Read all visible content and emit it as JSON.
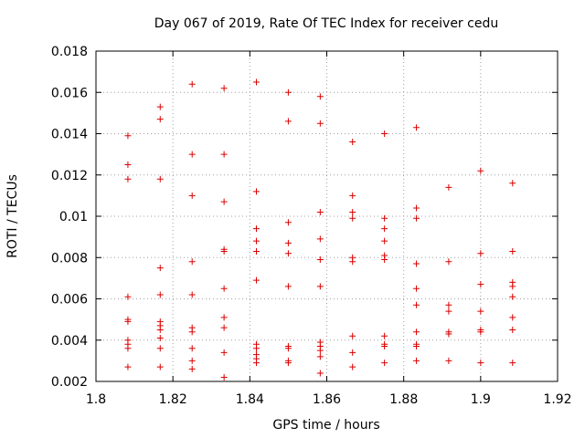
{
  "chart_data": {
    "type": "scatter",
    "title": "Day 067 of 2019, Rate Of TEC Index for receiver cedu",
    "xlabel": "GPS time / hours",
    "ylabel": "ROTI / TECUs",
    "xlim": [
      1.8,
      1.92
    ],
    "ylim": [
      0.002,
      0.018
    ],
    "xticks": [
      1.8,
      1.82,
      1.84,
      1.86,
      1.88,
      1.9,
      1.92
    ],
    "xtick_labels": [
      "1.8",
      "1.82",
      "1.84",
      "1.86",
      "1.88",
      "1.9",
      "1.92"
    ],
    "yticks": [
      0.002,
      0.004,
      0.006,
      0.008,
      0.01,
      0.012,
      0.014,
      0.016,
      0.018
    ],
    "ytick_labels": [
      "0.002",
      "0.004",
      "0.006",
      "0.008",
      "0.01",
      "0.012",
      "0.014",
      "0.016",
      "0.018"
    ],
    "grid": true,
    "marker": "+",
    "marker_color": "#dd0000",
    "series": [
      {
        "name": "ROTI",
        "points": [
          [
            1.8083,
            0.0139
          ],
          [
            1.8083,
            0.0125
          ],
          [
            1.8083,
            0.0118
          ],
          [
            1.8083,
            0.0061
          ],
          [
            1.8083,
            0.005
          ],
          [
            1.8083,
            0.0049
          ],
          [
            1.8083,
            0.004
          ],
          [
            1.8083,
            0.0038
          ],
          [
            1.8083,
            0.0036
          ],
          [
            1.8083,
            0.0027
          ],
          [
            1.8167,
            0.0153
          ],
          [
            1.8167,
            0.0147
          ],
          [
            1.8167,
            0.0118
          ],
          [
            1.8167,
            0.0075
          ],
          [
            1.8167,
            0.0062
          ],
          [
            1.8167,
            0.0049
          ],
          [
            1.8167,
            0.0047
          ],
          [
            1.8167,
            0.0045
          ],
          [
            1.8167,
            0.0041
          ],
          [
            1.8167,
            0.0036
          ],
          [
            1.8167,
            0.0027
          ],
          [
            1.825,
            0.0164
          ],
          [
            1.825,
            0.013
          ],
          [
            1.825,
            0.011
          ],
          [
            1.825,
            0.0078
          ],
          [
            1.825,
            0.0062
          ],
          [
            1.825,
            0.0046
          ],
          [
            1.825,
            0.0044
          ],
          [
            1.825,
            0.0036
          ],
          [
            1.825,
            0.003
          ],
          [
            1.825,
            0.0026
          ],
          [
            1.8333,
            0.0162
          ],
          [
            1.8333,
            0.013
          ],
          [
            1.8333,
            0.0107
          ],
          [
            1.8333,
            0.0084
          ],
          [
            1.8333,
            0.0083
          ],
          [
            1.8333,
            0.0065
          ],
          [
            1.8333,
            0.0051
          ],
          [
            1.8333,
            0.0046
          ],
          [
            1.8333,
            0.0034
          ],
          [
            1.8333,
            0.0022
          ],
          [
            1.8417,
            0.0165
          ],
          [
            1.8417,
            0.0112
          ],
          [
            1.8417,
            0.0094
          ],
          [
            1.8417,
            0.0088
          ],
          [
            1.8417,
            0.0083
          ],
          [
            1.8417,
            0.0069
          ],
          [
            1.8417,
            0.0038
          ],
          [
            1.8417,
            0.0036
          ],
          [
            1.8417,
            0.0033
          ],
          [
            1.8417,
            0.0031
          ],
          [
            1.8417,
            0.0029
          ],
          [
            1.85,
            0.016
          ],
          [
            1.85,
            0.0146
          ],
          [
            1.85,
            0.0097
          ],
          [
            1.85,
            0.0087
          ],
          [
            1.85,
            0.0082
          ],
          [
            1.85,
            0.0066
          ],
          [
            1.85,
            0.0037
          ],
          [
            1.85,
            0.0036
          ],
          [
            1.85,
            0.003
          ],
          [
            1.85,
            0.0029
          ],
          [
            1.8583,
            0.0158
          ],
          [
            1.8583,
            0.0145
          ],
          [
            1.8583,
            0.0102
          ],
          [
            1.8583,
            0.0089
          ],
          [
            1.8583,
            0.0079
          ],
          [
            1.8583,
            0.0066
          ],
          [
            1.8583,
            0.0039
          ],
          [
            1.8583,
            0.0037
          ],
          [
            1.8583,
            0.0035
          ],
          [
            1.8583,
            0.0032
          ],
          [
            1.8583,
            0.0024
          ],
          [
            1.8667,
            0.0136
          ],
          [
            1.8667,
            0.011
          ],
          [
            1.8667,
            0.0102
          ],
          [
            1.8667,
            0.0099
          ],
          [
            1.8667,
            0.008
          ],
          [
            1.8667,
            0.0078
          ],
          [
            1.8667,
            0.0042
          ],
          [
            1.8667,
            0.0034
          ],
          [
            1.8667,
            0.0027
          ],
          [
            1.875,
            0.014
          ],
          [
            1.875,
            0.0099
          ],
          [
            1.875,
            0.0094
          ],
          [
            1.875,
            0.0088
          ],
          [
            1.875,
            0.0081
          ],
          [
            1.875,
            0.0079
          ],
          [
            1.875,
            0.0042
          ],
          [
            1.875,
            0.0038
          ],
          [
            1.875,
            0.0037
          ],
          [
            1.875,
            0.0029
          ],
          [
            1.8833,
            0.0143
          ],
          [
            1.8833,
            0.0104
          ],
          [
            1.8833,
            0.0099
          ],
          [
            1.8833,
            0.0077
          ],
          [
            1.8833,
            0.0065
          ],
          [
            1.8833,
            0.0057
          ],
          [
            1.8833,
            0.0044
          ],
          [
            1.8833,
            0.0038
          ],
          [
            1.8833,
            0.0037
          ],
          [
            1.8833,
            0.003
          ],
          [
            1.8917,
            0.0114
          ],
          [
            1.8917,
            0.0078
          ],
          [
            1.8917,
            0.0057
          ],
          [
            1.8917,
            0.0054
          ],
          [
            1.8917,
            0.0044
          ],
          [
            1.8917,
            0.0043
          ],
          [
            1.8917,
            0.003
          ],
          [
            1.9,
            0.0122
          ],
          [
            1.9,
            0.0082
          ],
          [
            1.9,
            0.0067
          ],
          [
            1.9,
            0.0054
          ],
          [
            1.9,
            0.0045
          ],
          [
            1.9,
            0.0044
          ],
          [
            1.9,
            0.0029
          ],
          [
            1.9083,
            0.0116
          ],
          [
            1.9083,
            0.0083
          ],
          [
            1.9083,
            0.0068
          ],
          [
            1.9083,
            0.0066
          ],
          [
            1.9083,
            0.0061
          ],
          [
            1.9083,
            0.0051
          ],
          [
            1.9083,
            0.0045
          ],
          [
            1.9083,
            0.0029
          ]
        ]
      }
    ]
  }
}
